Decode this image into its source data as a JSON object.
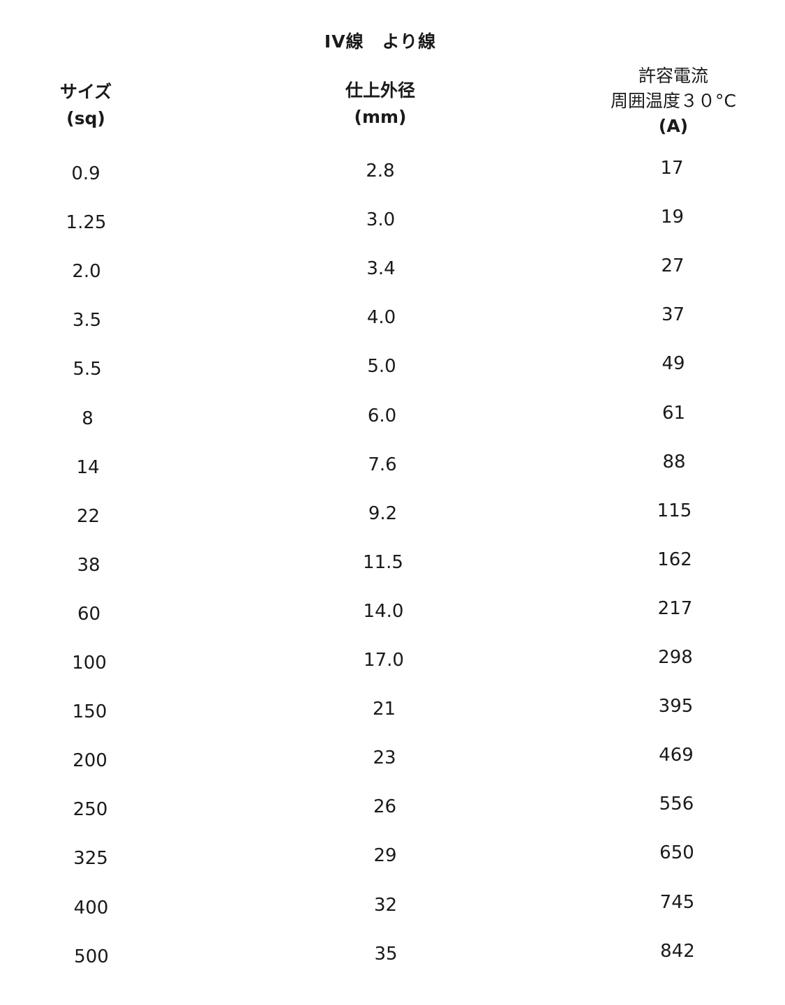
{
  "title": "IV線　より線",
  "headers": {
    "size": [
      "サイズ",
      "(sq)"
    ],
    "diameter": [
      "仕上外径",
      "(mm)"
    ],
    "current": [
      "許容電流",
      "周囲温度３０°C",
      "(A)"
    ]
  },
  "rows": [
    {
      "size": "0.9",
      "diameter": "2.8",
      "current": "17"
    },
    {
      "size": "1.25",
      "diameter": "3.0",
      "current": "19"
    },
    {
      "size": "2.0",
      "diameter": "3.4",
      "current": "27"
    },
    {
      "size": "3.5",
      "diameter": "4.0",
      "current": "37"
    },
    {
      "size": "5.5",
      "diameter": "5.0",
      "current": "49"
    },
    {
      "size": "8",
      "diameter": "6.0",
      "current": "61"
    },
    {
      "size": "14",
      "diameter": "7.6",
      "current": "88"
    },
    {
      "size": "22",
      "diameter": "9.2",
      "current": "115"
    },
    {
      "size": "38",
      "diameter": "11.5",
      "current": "162"
    },
    {
      "size": "60",
      "diameter": "14.0",
      "current": "217"
    },
    {
      "size": "100",
      "diameter": "17.0",
      "current": "298"
    },
    {
      "size": "150",
      "diameter": "21",
      "current": "395"
    },
    {
      "size": "200",
      "diameter": "23",
      "current": "469"
    },
    {
      "size": "250",
      "diameter": "26",
      "current": "556"
    },
    {
      "size": "325",
      "diameter": "29",
      "current": "650"
    },
    {
      "size": "400",
      "diameter": "32",
      "current": "745"
    },
    {
      "size": "500",
      "diameter": "35",
      "current": "842"
    }
  ]
}
